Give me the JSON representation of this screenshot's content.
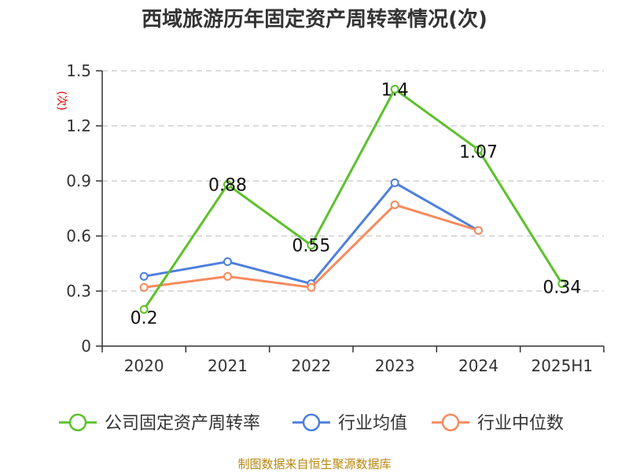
{
  "chart_data": {
    "type": "line",
    "title": "西域旅游历年固定资产周转率情况(次)",
    "ylabel": "(次)",
    "xlabel": "",
    "categories": [
      "2020",
      "2021",
      "2022",
      "2023",
      "2024",
      "2025H1"
    ],
    "ylim": [
      0,
      1.5
    ],
    "yticks": [
      "0",
      "0.3",
      "0.6",
      "0.9",
      "1.2",
      "1.5"
    ],
    "ytick_values": [
      0,
      0.3,
      0.6,
      0.9,
      1.2,
      1.5
    ],
    "grid": true,
    "legend_position": "bottom",
    "series": [
      {
        "name": "公司固定资产周转率",
        "color": "#5cc12b",
        "values": [
          0.2,
          0.88,
          0.55,
          1.4,
          1.07,
          0.34
        ],
        "labels": [
          "0.2",
          "0.88",
          "0.55",
          "1.4",
          "1.07",
          "0.34"
        ]
      },
      {
        "name": "行业均值",
        "color": "#4e7fdc",
        "values": [
          0.38,
          0.46,
          0.34,
          0.89,
          0.63,
          null
        ]
      },
      {
        "name": "行业中位数",
        "color": "#f58b5d",
        "values": [
          0.32,
          0.38,
          0.32,
          0.77,
          0.63,
          null
        ]
      }
    ]
  },
  "source": "制图数据来自恒生聚源数据库"
}
